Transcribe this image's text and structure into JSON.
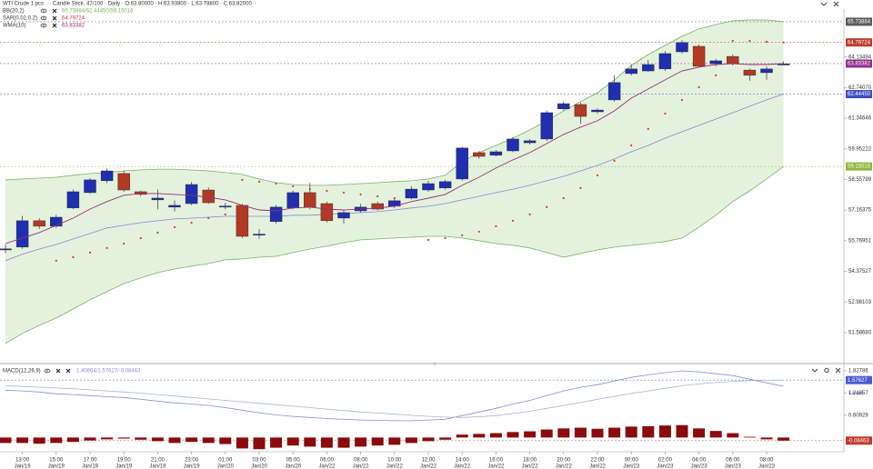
{
  "chart_data": [
    {
      "type": "candlestick",
      "title": "WTI Crude 1 pcs",
      "subtitle": "Candle Stick, 47/100 · Daily · O:63.80000 · H:63.93800 · L:63.78800 · C:63.82000",
      "categories": [
        null,
        "13:00",
        null,
        "15:00",
        null,
        "17:00",
        null,
        "19:00",
        null,
        "21:00",
        null,
        "23:00",
        null,
        "01:00",
        null,
        "03:00",
        null,
        "05:00",
        null,
        "06:00",
        null,
        "08:00",
        null,
        "10:00",
        null,
        "12:00",
        null,
        "14:00",
        null,
        "16:00",
        null,
        "18:00",
        null,
        "20:00",
        null,
        "22:00",
        null,
        "00:00",
        null,
        "02:00",
        null,
        "04:00",
        null,
        "06:00",
        null,
        "08:00",
        null
      ],
      "category_dates": [
        null,
        "Jan/19",
        null,
        "Jan/19",
        null,
        "Jan/19",
        null,
        "Jan/19",
        null,
        "Jan/19",
        null,
        "Jan/19",
        null,
        "Jan/20",
        null,
        "Jan/20",
        null,
        "Jan/20",
        null,
        "Jan/22",
        null,
        "Jan/22",
        null,
        "Jan/22",
        null,
        "Jan/22",
        null,
        "Jan/22",
        null,
        "Jan/22",
        null,
        "Jan/22",
        null,
        "Jan/22",
        null,
        "Jan/22",
        null,
        "Jan/23",
        null,
        "Jan/23",
        null,
        "Jan/23",
        null,
        "Jan/23",
        null,
        "Jan/23",
        null
      ],
      "open": [
        55.39,
        55.48,
        56.68,
        56.43,
        57.26,
        57.96,
        58.5,
        58.83,
        58.0,
        57.63,
        57.3,
        57.46,
        58.08,
        57.34,
        57.38,
        56.06,
        56.64,
        57.26,
        57.96,
        57.46,
        56.8,
        57.13,
        57.46,
        57.34,
        57.71,
        58.08,
        58.17,
        58.58,
        59.78,
        59.66,
        59.86,
        60.23,
        60.4,
        61.77,
        61.97,
        61.64,
        62.18,
        63.38,
        63.5,
        63.59,
        64.37,
        64.62,
        63.83,
        64.16,
        63.54,
        63.42,
        63.8
      ],
      "high": [
        55.6,
        56.9,
        56.8,
        56.95,
        58.1,
        58.62,
        59.05,
        58.95,
        58.05,
        58.1,
        57.6,
        58.45,
        58.2,
        57.5,
        57.45,
        56.3,
        57.4,
        58.05,
        58.4,
        57.55,
        57.15,
        57.45,
        57.55,
        57.7,
        58.25,
        58.5,
        58.55,
        60.05,
        59.85,
        59.9,
        60.5,
        60.4,
        61.7,
        62.1,
        62.05,
        61.8,
        63.3,
        63.8,
        64.0,
        64.4,
        64.9,
        64.7,
        64.05,
        64.25,
        63.6,
        63.7,
        63.938
      ],
      "low": [
        55.2,
        55.4,
        56.3,
        56.35,
        57.2,
        57.9,
        58.4,
        58.0,
        57.8,
        57.2,
        57.1,
        57.4,
        57.45,
        57.2,
        55.9,
        55.85,
        56.55,
        57.2,
        57.2,
        56.6,
        56.55,
        57.05,
        57.15,
        57.25,
        57.65,
        58.0,
        58.1,
        58.5,
        59.5,
        59.6,
        59.8,
        60.15,
        60.3,
        61.7,
        61.1,
        61.55,
        62.1,
        63.3,
        63.45,
        63.5,
        64.3,
        63.65,
        63.7,
        63.75,
        63.05,
        63.1,
        63.788
      ],
      "close": [
        55.4,
        56.68,
        56.43,
        56.84,
        58.0,
        58.54,
        58.95,
        58.08,
        57.88,
        57.71,
        57.38,
        58.33,
        57.5,
        57.35,
        55.97,
        56.07,
        57.3,
        57.96,
        57.3,
        56.68,
        57.05,
        57.3,
        57.21,
        57.59,
        58.12,
        58.37,
        58.46,
        59.99,
        59.61,
        59.82,
        60.4,
        60.32,
        61.6,
        62.01,
        61.43,
        61.72,
        62.97,
        63.59,
        63.79,
        64.29,
        64.79,
        63.71,
        63.96,
        63.83,
        63.3,
        63.59,
        63.82
      ],
      "up_color": "#1f2fb0",
      "down_color": "#b33a22",
      "ylim": [
        50.26,
        66.15
      ],
      "yticks": [
        {
          "value": 51.5868,
          "label": "51.58680"
        },
        52.98103,
        54.37527,
        55.76951,
        57.16375,
        58.55799,
        59.95222,
        61.34646,
        {
          "value": 62.7407,
          "label": "62.74070"
        },
        64.13494
      ],
      "grid": false,
      "series": [
        {
          "name": "BB(20,2)",
          "legend_value": "65.73884/62.44450/59.15016",
          "kind": "band",
          "color": "#78b35f",
          "fill": "#e4f2dd",
          "mid_color": "#8088d6",
          "upper": [
            58.54,
            58.58,
            58.62,
            58.66,
            58.75,
            58.83,
            58.87,
            58.95,
            58.99,
            59.03,
            59.03,
            58.99,
            58.95,
            58.87,
            58.79,
            58.58,
            58.41,
            58.33,
            58.29,
            58.29,
            58.33,
            58.37,
            58.41,
            58.46,
            58.5,
            58.58,
            58.75,
            59.37,
            59.78,
            60.11,
            60.44,
            60.81,
            61.23,
            61.68,
            62.1,
            62.51,
            63.09,
            63.75,
            64.25,
            64.66,
            65.08,
            65.41,
            65.61,
            65.78,
            65.82,
            65.82,
            65.73884
          ],
          "middle": [
            54.86,
            55.15,
            55.39,
            55.6,
            55.85,
            56.1,
            56.35,
            56.47,
            56.59,
            56.68,
            56.76,
            56.8,
            56.84,
            56.88,
            56.88,
            56.88,
            56.88,
            56.93,
            56.93,
            56.97,
            57.01,
            57.05,
            57.09,
            57.17,
            57.26,
            57.34,
            57.46,
            57.63,
            57.79,
            57.96,
            58.12,
            58.29,
            58.5,
            58.7,
            58.95,
            59.2,
            59.49,
            59.82,
            60.11,
            60.44,
            60.73,
            61.02,
            61.31,
            61.6,
            61.89,
            62.18,
            62.4445
          ],
          "lower": [
            51.09,
            51.55,
            51.92,
            52.25,
            52.66,
            53.08,
            53.45,
            53.82,
            54.07,
            54.32,
            54.48,
            54.61,
            54.73,
            54.9,
            54.94,
            55.02,
            55.06,
            55.23,
            55.39,
            55.52,
            55.68,
            55.81,
            55.85,
            55.89,
            55.93,
            55.97,
            55.97,
            55.89,
            55.77,
            55.64,
            55.56,
            55.44,
            55.23,
            55.02,
            55.19,
            55.35,
            55.48,
            55.56,
            55.64,
            55.73,
            55.89,
            56.39,
            56.93,
            57.55,
            58.04,
            58.58,
            59.15016
          ]
        },
        {
          "name": "SAR(0.02,0.2)",
          "legend_value": "64.79724",
          "kind": "dots",
          "color": "#d9362b",
          "values": [
            null,
            null,
            null,
            54.86,
            55.02,
            55.23,
            55.44,
            55.64,
            55.89,
            56.14,
            56.39,
            56.59,
            56.8,
            56.97,
            58.54,
            58.46,
            58.37,
            58.25,
            58.12,
            58.04,
            57.96,
            57.88,
            57.79,
            57.71,
            null,
            55.81,
            55.89,
            56.02,
            56.18,
            56.43,
            56.68,
            56.97,
            57.3,
            57.71,
            58.17,
            58.75,
            59.41,
            60.11,
            60.86,
            61.56,
            62.18,
            62.76,
            63.3,
            64.87,
            64.87,
            64.83,
            64.79724
          ]
        },
        {
          "name": "WMA(10)",
          "legend_value": "63.83382",
          "kind": "line",
          "color": "#9a2f75",
          "values": [
            55.64,
            55.89,
            56.14,
            56.47,
            56.8,
            57.21,
            57.55,
            57.84,
            57.92,
            57.92,
            57.88,
            57.84,
            57.75,
            57.63,
            57.38,
            57.17,
            57.13,
            57.26,
            57.3,
            57.21,
            57.17,
            57.21,
            57.26,
            57.34,
            57.55,
            57.71,
            57.88,
            58.29,
            58.66,
            59.08,
            59.45,
            59.78,
            60.19,
            60.61,
            60.94,
            61.23,
            61.68,
            62.26,
            62.68,
            63.09,
            63.5,
            63.67,
            63.79,
            63.83,
            63.79,
            63.79,
            63.83382
          ]
        }
      ],
      "price_labels": [
        {
          "value": 65.73884,
          "color": "#5a5a5a"
        },
        {
          "value": 64.79724,
          "color": "#c0392b"
        },
        {
          "value": 63.83382,
          "color": "#8e2f8e"
        },
        {
          "value": 62.4445,
          "label": "62.44450",
          "color": "#3d4fc4"
        },
        {
          "value": 59.15016,
          "color": "#8cb63c"
        }
      ]
    },
    {
      "type": "macd",
      "title": "MACD(12,26,9)",
      "legend_value": "1.40664/1.57627/-0.08463",
      "ylim": [
        -0.39,
        1.98
      ],
      "yticks": [
        0.60929,
        1.21857,
        1.82786
      ],
      "histogram": {
        "color": "#8b0a0a",
        "values": [
          -0.15,
          -0.15,
          -0.17,
          -0.15,
          -0.12,
          -0.08,
          -0.05,
          -0.03,
          -0.06,
          -0.1,
          -0.15,
          -0.12,
          -0.15,
          -0.18,
          -0.3,
          -0.32,
          -0.28,
          -0.22,
          -0.25,
          -0.28,
          -0.28,
          -0.25,
          -0.22,
          -0.2,
          -0.15,
          -0.1,
          -0.06,
          0.08,
          0.1,
          0.12,
          0.15,
          0.17,
          0.22,
          0.25,
          0.27,
          0.24,
          0.27,
          0.3,
          0.31,
          0.33,
          0.34,
          0.25,
          0.18,
          0.12,
          0.02,
          -0.05,
          -0.08463
        ]
      },
      "macd": {
        "color": "#8a8fd8",
        "values": [
          1.3,
          1.28,
          1.25,
          1.2,
          1.18,
          1.15,
          1.12,
          1.1,
          1.05,
          1.0,
          0.95,
          0.92,
          0.88,
          0.82,
          0.75,
          0.68,
          0.62,
          0.58,
          0.55,
          0.52,
          0.5,
          0.48,
          0.47,
          0.46,
          0.46,
          0.48,
          0.5,
          0.6,
          0.7,
          0.8,
          0.92,
          1.02,
          1.15,
          1.28,
          1.38,
          1.45,
          1.55,
          1.65,
          1.72,
          1.78,
          1.83,
          1.8,
          1.75,
          1.7,
          1.6,
          1.5,
          1.40664
        ]
      },
      "signal": {
        "color": "#aab6cc",
        "values": [
          1.42,
          1.4,
          1.38,
          1.36,
          1.34,
          1.31,
          1.28,
          1.25,
          1.22,
          1.18,
          1.14,
          1.1,
          1.06,
          1.02,
          0.98,
          0.94,
          0.9,
          0.86,
          0.82,
          0.78,
          0.74,
          0.7,
          0.67,
          0.64,
          0.61,
          0.58,
          0.56,
          0.55,
          0.57,
          0.6,
          0.66,
          0.72,
          0.8,
          0.88,
          0.96,
          1.05,
          1.13,
          1.21,
          1.28,
          1.35,
          1.42,
          1.47,
          1.51,
          1.54,
          1.56,
          1.57,
          1.57627
        ]
      },
      "price_labels": [
        {
          "value": 1.57627,
          "color": "#4a5bd0"
        },
        {
          "value": 1.40664,
          "color": "#4a5bd0",
          "plain": true
        },
        {
          "value": -0.08463,
          "color": "#c0392b"
        }
      ]
    }
  ]
}
